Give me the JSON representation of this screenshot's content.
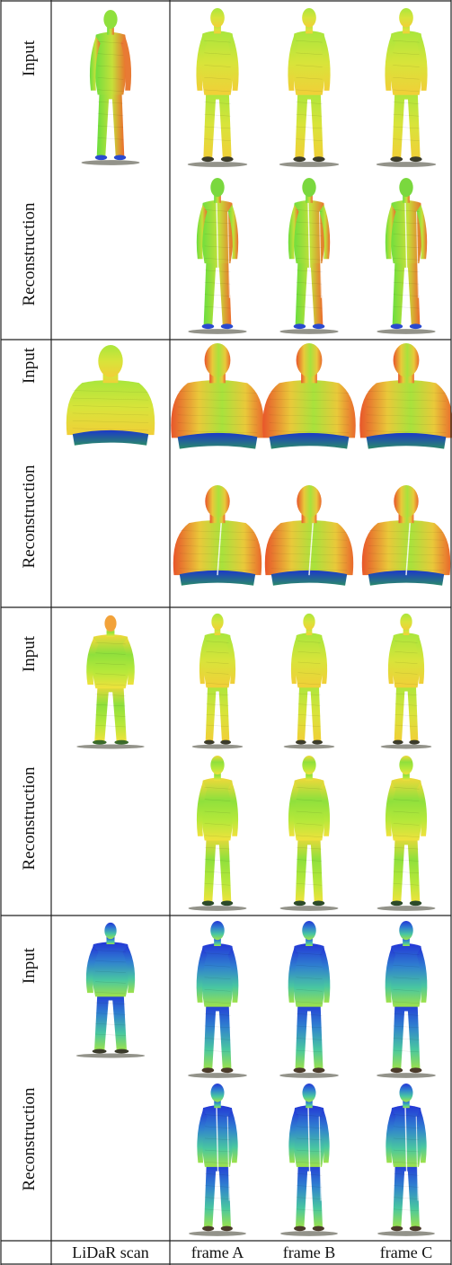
{
  "figure": {
    "row_labels": {
      "input": "Input",
      "reconstruction": "Reconstruction"
    },
    "column_labels": [
      "LiDaR scan",
      "frame A",
      "frame B",
      "frame C"
    ],
    "colors": {
      "grid": "#222222",
      "depth_near": "#1e3fd0",
      "depth_mid": "#4fe34a",
      "depth_far": "#f2e23a",
      "depth_hot": "#e8642a"
    },
    "blocks": [
      {
        "subject": "subject-1",
        "lidar_style": "standing-arms-down",
        "input_style": "standing",
        "recon_style": "standing-hands-pocket"
      },
      {
        "subject": "subject-2",
        "lidar_style": "upper-body",
        "input_style": "upper-body",
        "recon_style": "upper-body-hoodie"
      },
      {
        "subject": "subject-3",
        "lidar_style": "standing-wide",
        "input_style": "standing-sparse",
        "recon_style": "standing-hoodie"
      },
      {
        "subject": "subject-4",
        "lidar_style": "standing-back",
        "input_style": "standing-back",
        "recon_style": "standing-back-striped"
      }
    ]
  }
}
